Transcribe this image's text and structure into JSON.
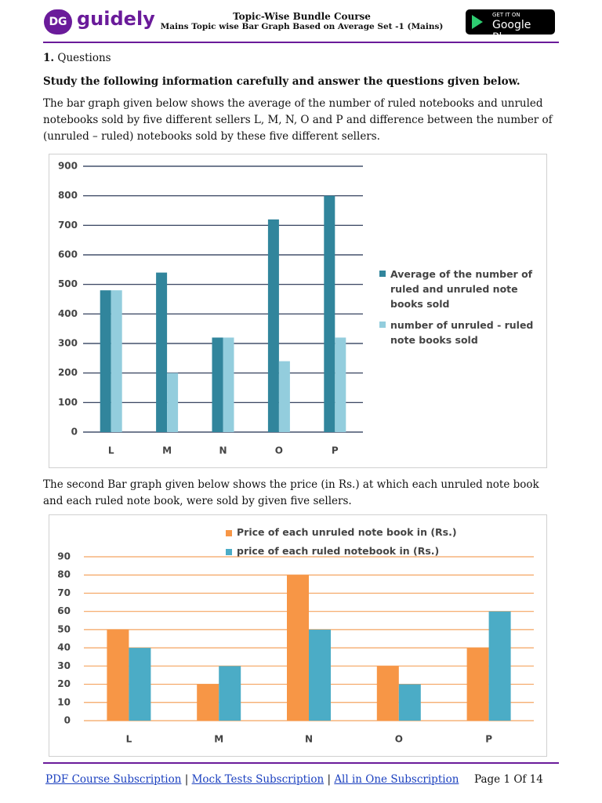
{
  "header": {
    "logo": "guidely",
    "logo_mark": "DG",
    "title": "Topic-Wise Bundle Course",
    "subtitle": "Mains Topic wise Bar Graph Based on Average Set -1 (Mains)",
    "badge_small": "GET IT ON",
    "badge_large": "Google Play"
  },
  "question": {
    "number": "1.",
    "label": "Questions",
    "instruction": "Study the following information carefully and answer the questions given below.",
    "paragraph_1": "The bar graph given below shows the average of the number of ruled notebooks and unruled notebooks sold by five different sellers L, M, N, O and P and difference between the number of (unruled – ruled) notebooks sold by these five different sellers.",
    "paragraph_2": "The second Bar graph given below shows the price (in Rs.) at which each unruled note book and each ruled note book, were sold by given five sellers."
  },
  "chart_data": [
    {
      "type": "bar",
      "categories": [
        "L",
        "M",
        "N",
        "O",
        "P"
      ],
      "series": [
        {
          "name": "Average of the number of ruled and unruled note books sold",
          "color": "#31859c",
          "values": [
            480,
            540,
            320,
            720,
            800
          ]
        },
        {
          "name": "number of unruled - ruled note books sold",
          "color": "#93cddd",
          "values": [
            480,
            200,
            320,
            240,
            320
          ]
        }
      ],
      "ylim": [
        0,
        900
      ],
      "yticks": [
        0,
        100,
        200,
        300,
        400,
        500,
        600,
        700,
        800,
        900
      ],
      "grid": true,
      "grid_color": "#1f2d4d",
      "legend": "right"
    },
    {
      "type": "bar",
      "categories": [
        "L",
        "M",
        "N",
        "O",
        "P"
      ],
      "series": [
        {
          "name": "Price of each unruled note book in (Rs.)",
          "color": "#f79646",
          "values": [
            50,
            20,
            80,
            30,
            40
          ]
        },
        {
          "name": "price of each ruled  notebook in (Rs.)",
          "color": "#4bacc6",
          "values": [
            40,
            30,
            50,
            20,
            60
          ]
        }
      ],
      "ylim": [
        0,
        90
      ],
      "yticks": [
        0,
        10,
        20,
        30,
        40,
        50,
        60,
        70,
        80,
        90
      ],
      "grid": true,
      "grid_color": "#f4a460",
      "legend": "top"
    }
  ],
  "footer": {
    "link_1": "PDF Course Subscription",
    "separator_1": "|",
    "link_2": "Mock Tests Subscription",
    "separator_2": "|",
    "link_3": "All in One Subscription",
    "page": "Page 1 Of 14"
  }
}
